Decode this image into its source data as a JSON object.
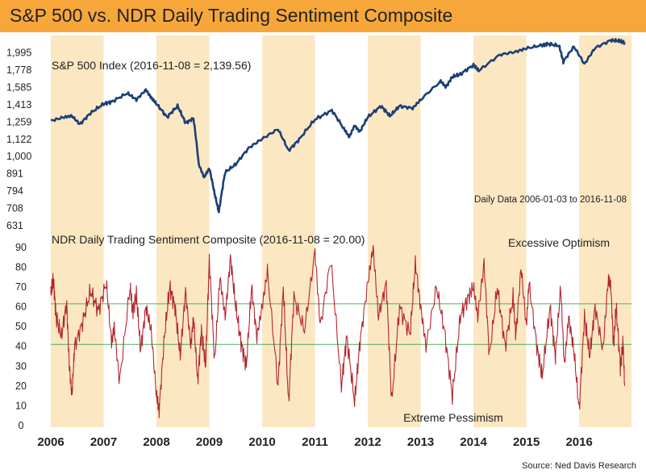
{
  "title": "S&P 500 vs. NDR Daily Trading Sentiment Composite",
  "source": "Source: Ned Davis Research",
  "date_range_note": "Daily Data 2006-01-03 to 2016-11-08",
  "colors": {
    "header": "#f7a73a",
    "shade": "#fce7c3",
    "sp500_line": "#1c3f74",
    "sentiment_line": "#b3262e",
    "threshold_line": "#4fae5c",
    "sp500_label": "#1f4a86",
    "sentiment_label": "#b3262e"
  },
  "chart_data": [
    {
      "type": "line",
      "scale": "log",
      "series": [
        {
          "name": "S&P 500 Index (2016-11-08 = 2,139.56)"
        }
      ],
      "yticks": [
        631,
        708,
        794,
        891,
        1000,
        1122,
        1259,
        1413,
        1585,
        1778,
        1995
      ],
      "ytick_labels": [
        "631",
        "708",
        "794",
        "891",
        "1,000",
        "1,122",
        "1,259",
        "1,413",
        "1,585",
        "1,778",
        "1,995"
      ],
      "ylim": [
        631,
        2240
      ],
      "x": [
        2006.0,
        2006.25,
        2006.4,
        2006.55,
        2006.75,
        2007.0,
        2007.15,
        2007.45,
        2007.62,
        2007.8,
        2007.9,
        2008.0,
        2008.2,
        2008.4,
        2008.55,
        2008.7,
        2008.8,
        2008.9,
        2009.0,
        2009.1,
        2009.18,
        2009.3,
        2009.5,
        2009.75,
        2010.0,
        2010.3,
        2010.5,
        2010.7,
        2011.0,
        2011.32,
        2011.55,
        2011.65,
        2011.75,
        2011.85,
        2012.0,
        2012.25,
        2012.42,
        2012.6,
        2012.85,
        2013.0,
        2013.38,
        2013.48,
        2013.6,
        2013.75,
        2014.0,
        2014.1,
        2014.5,
        2014.8,
        2015.0,
        2015.3,
        2015.4,
        2015.62,
        2015.7,
        2015.9,
        2016.1,
        2016.3,
        2016.6,
        2016.75,
        2016.86
      ],
      "y": [
        1268,
        1300,
        1310,
        1240,
        1335,
        1420,
        1440,
        1525,
        1460,
        1560,
        1480,
        1420,
        1300,
        1400,
        1250,
        1290,
        950,
        870,
        925,
        780,
        690,
        900,
        950,
        1060,
        1125,
        1200,
        1040,
        1120,
        1280,
        1360,
        1200,
        1140,
        1230,
        1180,
        1300,
        1400,
        1310,
        1400,
        1380,
        1460,
        1650,
        1590,
        1700,
        1730,
        1840,
        1770,
        1970,
        2010,
        2055,
        2100,
        2120,
        2090,
        1880,
        2080,
        1850,
        2060,
        2170,
        2160,
        2139.56
      ]
    },
    {
      "type": "line",
      "series": [
        {
          "name": "NDR Daily Trading Sentiment Composite (2016-11-08 = 20.00)"
        }
      ],
      "yticks": [
        0,
        10,
        20,
        30,
        40,
        50,
        60,
        70,
        80,
        90
      ],
      "ylim": [
        0,
        92
      ],
      "threshold_lines": [
        61.5,
        41
      ],
      "annotations": [
        "Excessive Optimism",
        "Extreme Pessimism"
      ],
      "x": [
        2006.0,
        2006.05,
        2006.1,
        2006.2,
        2006.3,
        2006.35,
        2006.4,
        2006.45,
        2006.6,
        2006.75,
        2006.9,
        2007.05,
        2007.15,
        2007.2,
        2007.3,
        2007.5,
        2007.55,
        2007.62,
        2007.7,
        2007.8,
        2007.9,
        2008.0,
        2008.05,
        2008.15,
        2008.25,
        2008.35,
        2008.45,
        2008.55,
        2008.65,
        2008.7,
        2008.78,
        2008.85,
        2008.93,
        2009.0,
        2009.1,
        2009.2,
        2009.3,
        2009.4,
        2009.5,
        2009.6,
        2009.7,
        2009.8,
        2009.9,
        2010.0,
        2010.1,
        2010.3,
        2010.4,
        2010.5,
        2010.6,
        2010.8,
        2011.0,
        2011.1,
        2011.3,
        2011.5,
        2011.6,
        2011.75,
        2011.85,
        2012.0,
        2012.1,
        2012.2,
        2012.35,
        2012.45,
        2012.6,
        2012.8,
        2012.9,
        2013.0,
        2013.1,
        2013.3,
        2013.45,
        2013.6,
        2013.75,
        2013.9,
        2014.0,
        2014.08,
        2014.2,
        2014.3,
        2014.45,
        2014.6,
        2014.75,
        2014.8,
        2014.9,
        2015.0,
        2015.05,
        2015.2,
        2015.3,
        2015.45,
        2015.55,
        2015.65,
        2015.72,
        2015.8,
        2015.9,
        2016.0,
        2016.1,
        2016.2,
        2016.3,
        2016.45,
        2016.55,
        2016.6,
        2016.65,
        2016.7,
        2016.78,
        2016.83,
        2016.86
      ],
      "y": [
        66,
        74,
        55,
        45,
        62,
        30,
        15,
        40,
        52,
        68,
        58,
        72,
        42,
        50,
        22,
        70,
        58,
        66,
        38,
        60,
        48,
        15,
        8,
        45,
        70,
        60,
        35,
        68,
        40,
        55,
        22,
        48,
        30,
        84,
        32,
        75,
        55,
        85,
        60,
        42,
        30,
        70,
        45,
        60,
        78,
        20,
        70,
        11,
        65,
        48,
        88,
        50,
        84,
        20,
        45,
        12,
        42,
        72,
        90,
        55,
        72,
        12,
        60,
        46,
        82,
        60,
        40,
        70,
        48,
        15,
        55,
        65,
        70,
        55,
        82,
        35,
        70,
        40,
        65,
        45,
        80,
        50,
        72,
        40,
        25,
        60,
        35,
        70,
        30,
        55,
        38,
        8,
        55,
        35,
        60,
        38,
        74,
        70,
        40,
        60,
        30,
        42,
        20
      ]
    }
  ],
  "x_axis": {
    "labels": [
      "2006",
      "2007",
      "2008",
      "2009",
      "2010",
      "2011",
      "2012",
      "2013",
      "2014",
      "2015",
      "2016"
    ],
    "shaded_years": [
      2006,
      2008,
      2010,
      2012,
      2014,
      2016
    ]
  }
}
